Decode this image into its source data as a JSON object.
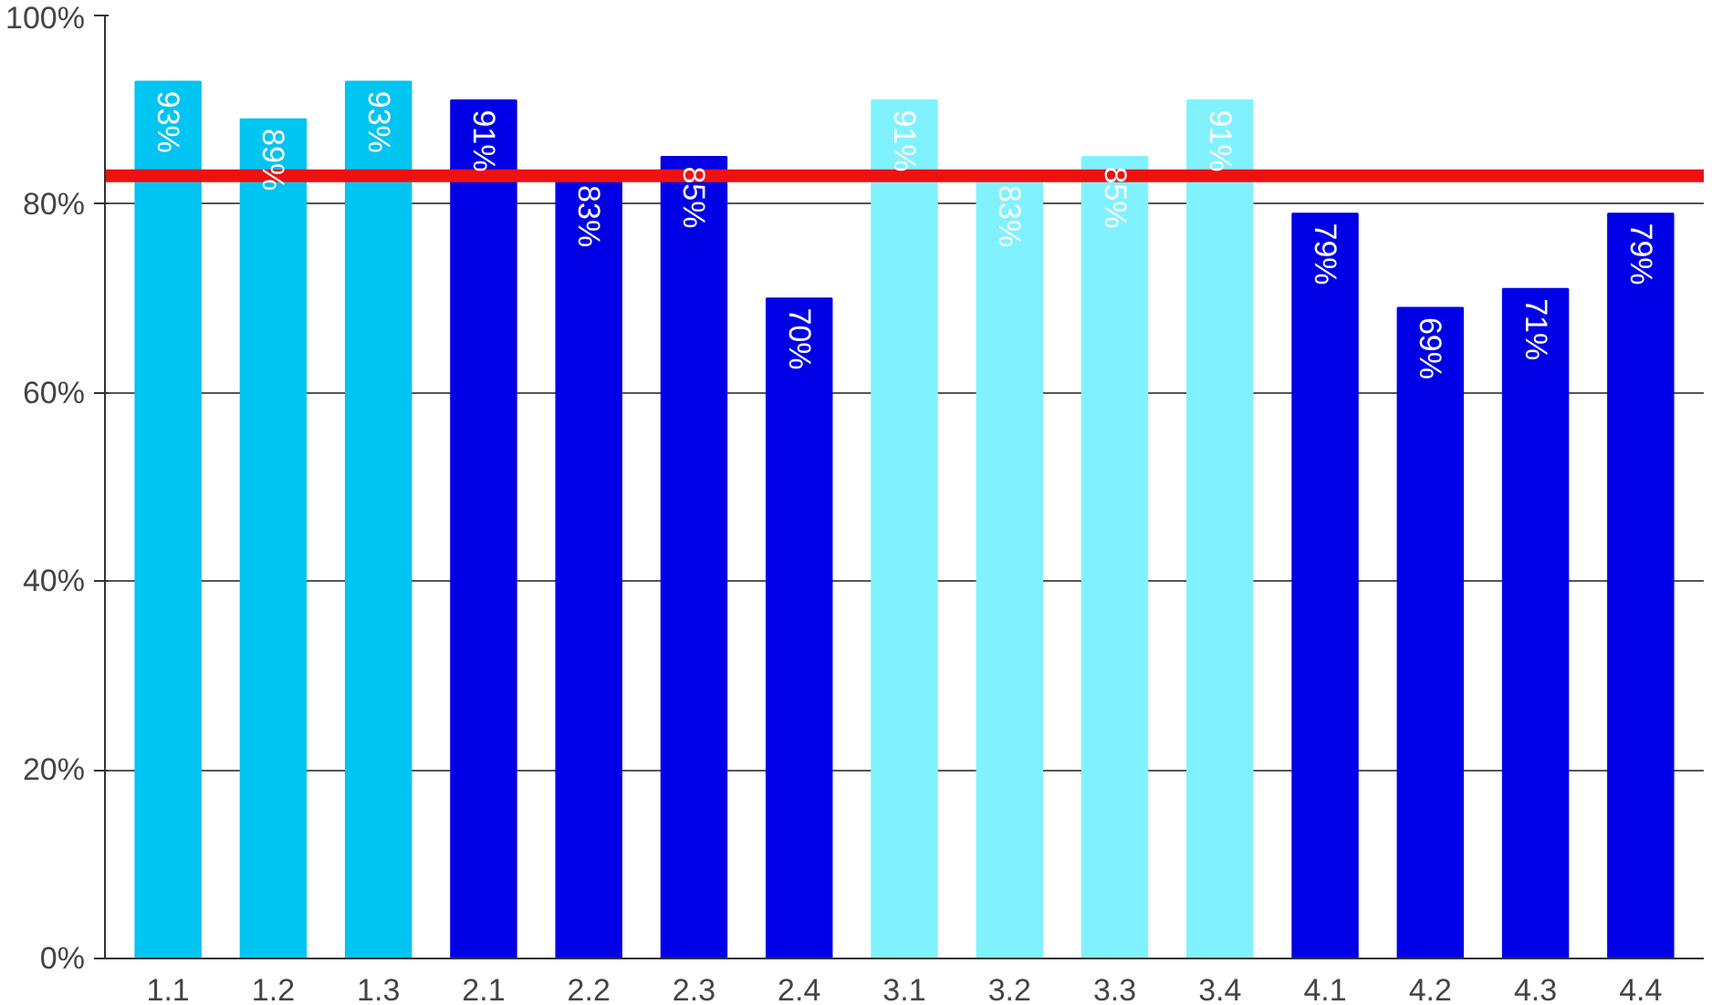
{
  "chart_data": {
    "type": "bar",
    "categories": [
      "1.1",
      "1.2",
      "1.3",
      "2.1",
      "2.2",
      "2.3",
      "2.4",
      "3.1",
      "3.2",
      "3.3",
      "3.4",
      "4.1",
      "4.2",
      "4.3",
      "4.4"
    ],
    "values": [
      93,
      89,
      93,
      91,
      83,
      85,
      70,
      91,
      83,
      85,
      91,
      79,
      69,
      71,
      79
    ],
    "colors": [
      "#00c4f2",
      "#00c4f2",
      "#00c4f2",
      "#0000e6",
      "#0000e6",
      "#0000e6",
      "#0000e6",
      "#80f2ff",
      "#80f2ff",
      "#80f2ff",
      "#80f2ff",
      "#0000e6",
      "#0000e6",
      "#0000e6",
      "#0000e6"
    ],
    "value_labels": [
      "93%",
      "89%",
      "93%",
      "91%",
      "83%",
      "85%",
      "70%",
      "91%",
      "83%",
      "85%",
      "91%",
      "79%",
      "69%",
      "71%",
      "79%"
    ],
    "ylim": [
      0,
      100
    ],
    "yticks": [
      {
        "value": 0,
        "label": "0%"
      },
      {
        "value": 20,
        "label": "20%"
      },
      {
        "value": 40,
        "label": "40%"
      },
      {
        "value": 60,
        "label": "60%"
      },
      {
        "value": 80,
        "label": "80%"
      },
      {
        "value": 100,
        "label": "100%"
      }
    ],
    "grid": "y",
    "ref_lines": [
      {
        "axis": "y",
        "value": 83,
        "label": null,
        "color": "#ee1111"
      }
    ]
  }
}
